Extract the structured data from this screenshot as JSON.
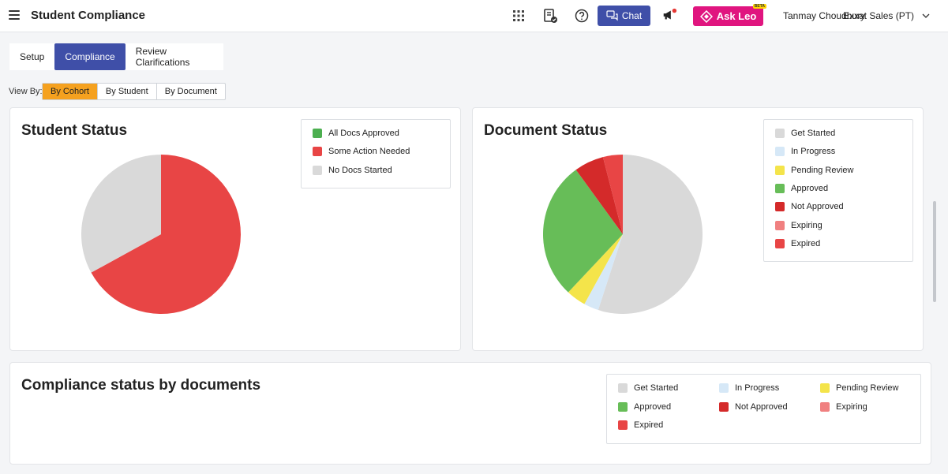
{
  "header": {
    "title": "Student Compliance",
    "chat_label": "Chat",
    "askleo_label": "Ask Leo",
    "askleo_badge": "BETA",
    "user_name": "Tanmay Choudhury",
    "org_name": "Exxat Sales (PT)"
  },
  "tabs": [
    {
      "label": "Setup"
    },
    {
      "label": "Compliance"
    },
    {
      "label": "Review Clarifications"
    }
  ],
  "view_by": {
    "label": "View By:",
    "options": [
      {
        "label": "By Cohort"
      },
      {
        "label": "By Student"
      },
      {
        "label": "By Document"
      }
    ]
  },
  "student_status": {
    "title": "Student Status",
    "legend": [
      {
        "label": "All Docs Approved",
        "color": "#4caf50"
      },
      {
        "label": "Some Action Needed",
        "color": "#e84545"
      },
      {
        "label": "No Docs Started",
        "color": "#d9d9d9"
      }
    ]
  },
  "document_status": {
    "title": "Document Status",
    "legend": [
      {
        "label": "Get Started",
        "color": "#d9d9d9"
      },
      {
        "label": "In Progress",
        "color": "#d6e8f7"
      },
      {
        "label": "Pending Review",
        "color": "#f4e44a"
      },
      {
        "label": "Approved",
        "color": "#67bd58"
      },
      {
        "label": "Not Approved",
        "color": "#d42a2a"
      },
      {
        "label": "Expiring",
        "color": "#f08080"
      },
      {
        "label": "Expired",
        "color": "#e84545"
      }
    ]
  },
  "compliance_by_docs": {
    "title": "Compliance status by documents",
    "legend": [
      {
        "label": "Get Started",
        "color": "#d9d9d9"
      },
      {
        "label": "In Progress",
        "color": "#d6e8f7"
      },
      {
        "label": "Pending Review",
        "color": "#f4e44a"
      },
      {
        "label": "Approved",
        "color": "#67bd58"
      },
      {
        "label": "Not Approved",
        "color": "#d42a2a"
      },
      {
        "label": "Expiring",
        "color": "#f08080"
      },
      {
        "label": "Expired",
        "color": "#e84545"
      }
    ]
  },
  "chart_data": [
    {
      "type": "pie",
      "title": "Student Status",
      "categories": [
        "All Docs Approved",
        "Some Action Needed",
        "No Docs Started"
      ],
      "values": [
        0,
        67,
        33
      ],
      "colors": [
        "#4caf50",
        "#e84545",
        "#d9d9d9"
      ]
    },
    {
      "type": "pie",
      "title": "Document Status",
      "categories": [
        "Get Started",
        "In Progress",
        "Pending Review",
        "Approved",
        "Not Approved",
        "Expiring",
        "Expired"
      ],
      "values": [
        55,
        3,
        4,
        28,
        6,
        0,
        4
      ],
      "colors": [
        "#d9d9d9",
        "#d6e8f7",
        "#f4e44a",
        "#67bd58",
        "#d42a2a",
        "#f08080",
        "#e84545"
      ]
    }
  ]
}
